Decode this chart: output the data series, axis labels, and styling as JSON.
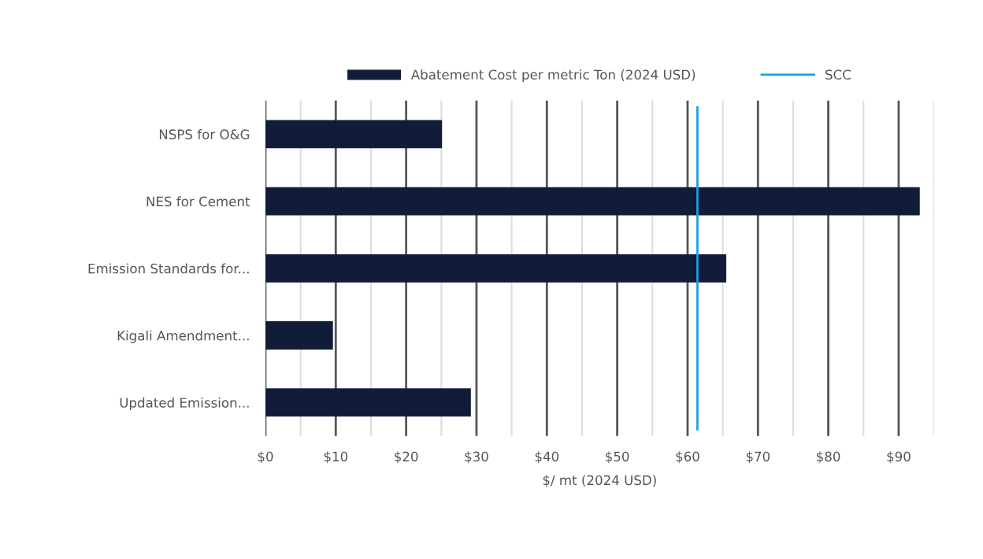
{
  "chart_data": {
    "type": "bar",
    "orientation": "horizontal",
    "categories": [
      "NSPS for O&G",
      "NES for Cement",
      "Emission Standards for...",
      "Kigali Amendment...",
      "Updated Emission..."
    ],
    "series": [
      {
        "name": "Abatement Cost per metric Ton (2024 USD)",
        "color": "#101c38",
        "values": [
          25.1,
          93.0,
          65.5,
          9.6,
          29.2
        ]
      }
    ],
    "xlabel": "$/ mt (2024 USD)",
    "xlim": [
      0,
      95
    ],
    "xticks": [
      {
        "value": 0,
        "label": "$0"
      },
      {
        "value": 5,
        "label": null
      },
      {
        "value": 10,
        "label": "$10"
      },
      {
        "value": 15,
        "label": null
      },
      {
        "value": 20,
        "label": "$20"
      },
      {
        "value": 25,
        "label": null
      },
      {
        "value": 30,
        "label": "$30"
      },
      {
        "value": 35,
        "label": null
      },
      {
        "value": 40,
        "label": "$40"
      },
      {
        "value": 45,
        "label": null
      },
      {
        "value": 50,
        "label": "$50"
      },
      {
        "value": 55,
        "label": null
      },
      {
        "value": 60,
        "label": "$60"
      },
      {
        "value": 65,
        "label": null
      },
      {
        "value": 70,
        "label": "$70"
      },
      {
        "value": 75,
        "label": null
      },
      {
        "value": 80,
        "label": "$80"
      },
      {
        "value": 85,
        "label": null
      },
      {
        "value": 90,
        "label": "$90"
      },
      {
        "value": 95,
        "label": null
      }
    ],
    "ref_lines": [
      {
        "axis": "x",
        "value": 61.4,
        "label": "SCC",
        "color": "#1ba1e2"
      }
    ],
    "grid": "x",
    "legend": "top"
  }
}
